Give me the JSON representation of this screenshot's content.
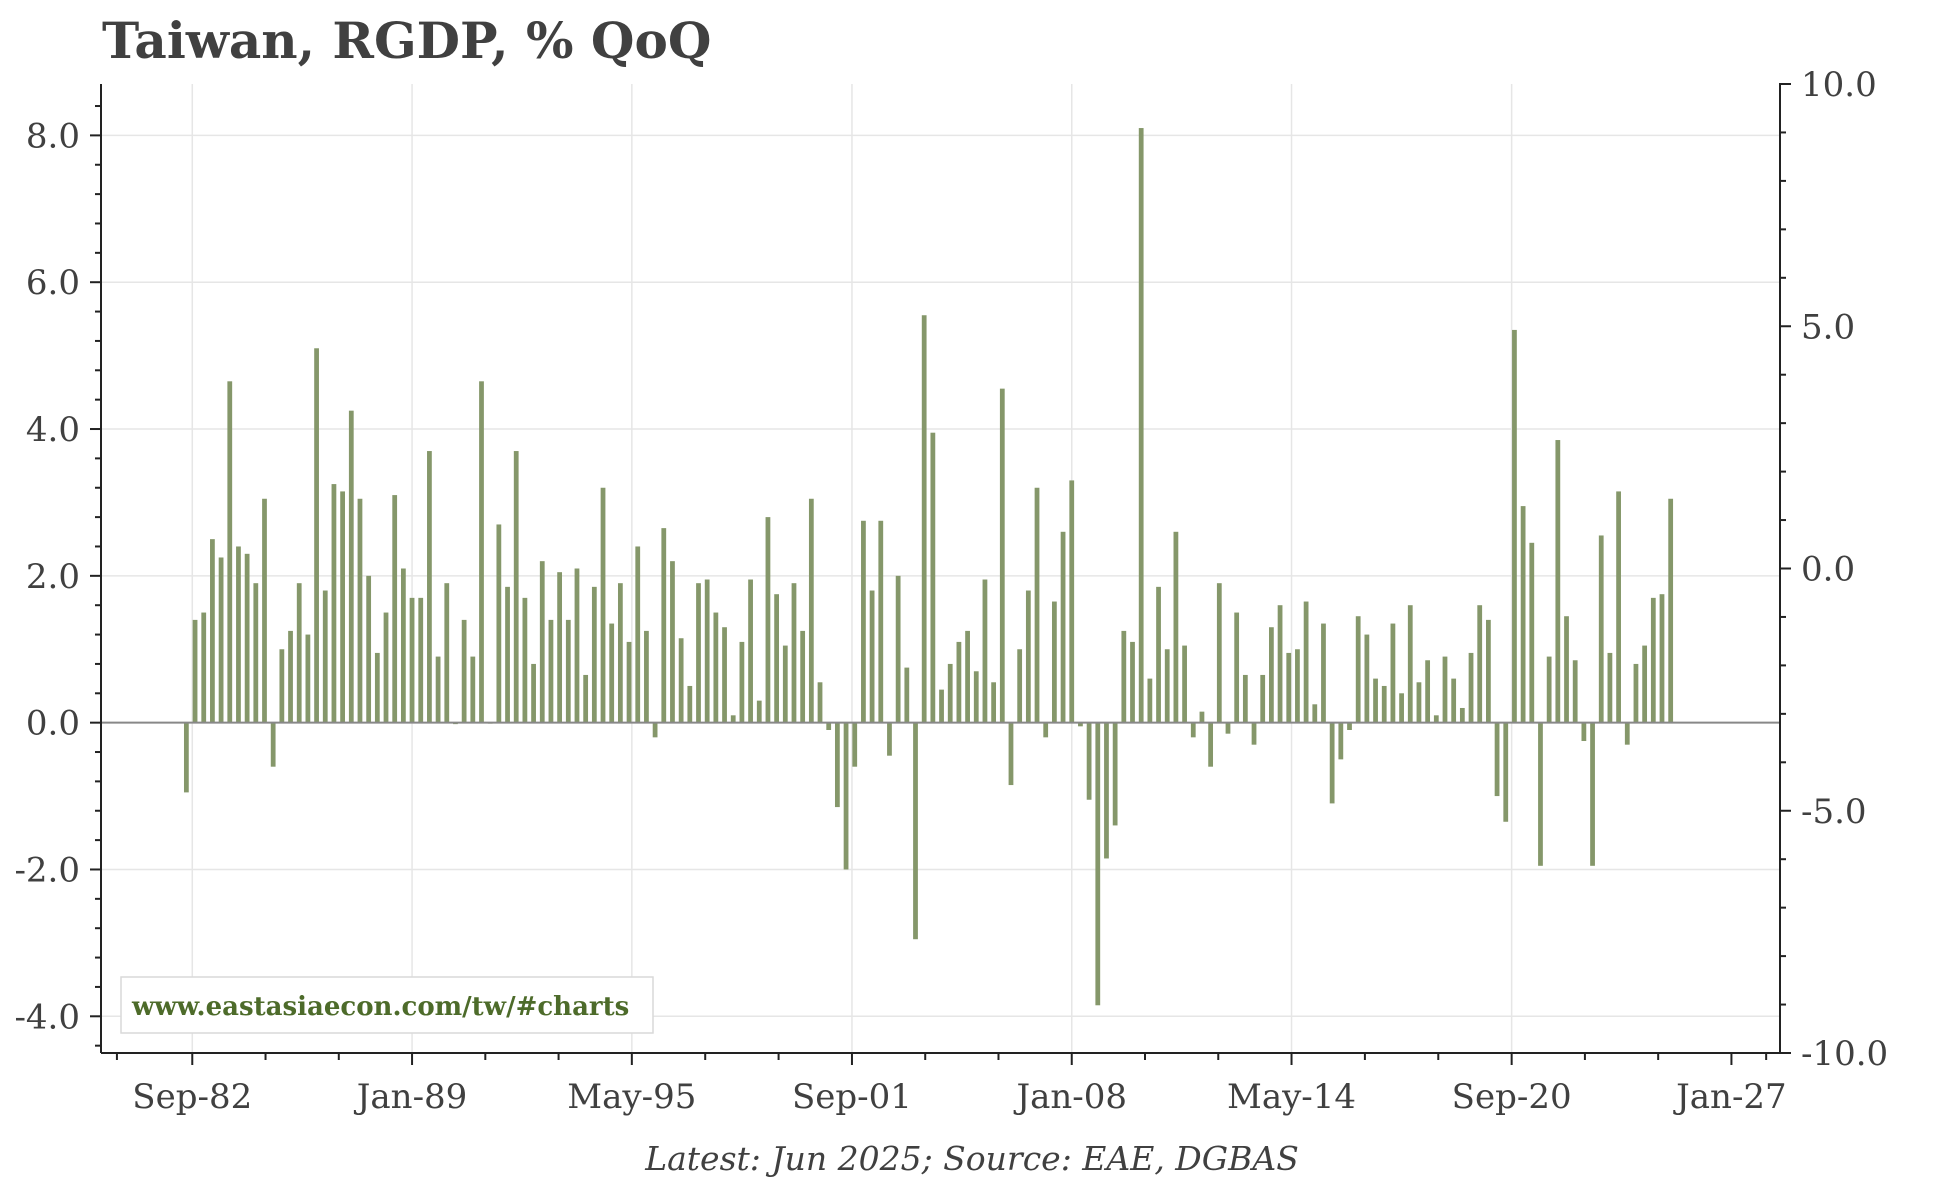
{
  "chart_data": {
    "type": "bar",
    "title": "Taiwan, RGDP, % QoQ",
    "footnote": "Latest: Jun 2025; Source: EAE, DGBAS",
    "watermark": "www.eastasiaecon.com/tw/#charts",
    "start_quarter": "Q3-1982",
    "end_quarter": "Q2-2025",
    "xlabel": "",
    "ylabel": "",
    "ylim": [
      -4.5,
      8.7
    ],
    "ylim_right": [
      -10.0,
      10.0
    ],
    "yticks_left": [
      "-4.0",
      "-2.0",
      "0.0",
      "2.0",
      "4.0",
      "6.0",
      "8.0"
    ],
    "yticks_right": [
      "-10.0",
      "-5.0",
      "0.0",
      "5.0",
      "10.0"
    ],
    "xtick_labels": [
      "Sep-82",
      "Jan-89",
      "May-95",
      "Sep-01",
      "Jan-08",
      "May-14",
      "Sep-20",
      "Jan-27"
    ],
    "grid": true,
    "bar_color": "#85976a",
    "values": [
      -0.95,
      1.4,
      1.5,
      2.5,
      2.25,
      4.65,
      2.4,
      2.3,
      1.9,
      3.05,
      -0.6,
      1.0,
      1.25,
      1.9,
      1.2,
      5.1,
      1.8,
      3.25,
      3.15,
      4.25,
      3.05,
      2.0,
      0.95,
      1.5,
      3.1,
      2.1,
      1.7,
      1.7,
      3.7,
      0.9,
      1.9,
      -0.02,
      1.4,
      0.9,
      4.65,
      0.0,
      2.7,
      1.85,
      3.7,
      1.7,
      0.8,
      2.2,
      1.4,
      2.05,
      1.4,
      2.1,
      0.65,
      1.85,
      3.2,
      1.35,
      1.9,
      1.1,
      2.4,
      1.25,
      -0.2,
      2.65,
      2.2,
      1.15,
      0.5,
      1.9,
      1.95,
      1.5,
      1.3,
      0.1,
      1.1,
      1.95,
      0.3,
      2.8,
      1.75,
      1.05,
      1.9,
      1.25,
      3.05,
      0.55,
      -0.1,
      -1.15,
      -2.0,
      -0.6,
      2.75,
      1.8,
      2.75,
      -0.45,
      2.0,
      0.75,
      -2.95,
      5.55,
      3.95,
      0.45,
      0.8,
      1.1,
      1.25,
      0.7,
      1.95,
      0.55,
      4.55,
      -0.85,
      1.0,
      1.8,
      3.2,
      -0.2,
      1.65,
      2.6,
      3.3,
      -0.05,
      -1.05,
      -3.85,
      -1.85,
      -1.4,
      1.25,
      1.1,
      8.1,
      0.6,
      1.85,
      1.0,
      2.6,
      1.05,
      -0.2,
      0.15,
      -0.6,
      1.9,
      -0.15,
      1.5,
      0.65,
      -0.3,
      0.65,
      1.3,
      1.6,
      0.95,
      1.0,
      1.65,
      0.25,
      1.35,
      -1.1,
      -0.5,
      -0.1,
      1.45,
      1.2,
      0.6,
      0.5,
      1.35,
      0.4,
      1.6,
      0.55,
      0.85,
      0.1,
      0.9,
      0.6,
      0.2,
      0.95,
      1.6,
      1.4,
      -1.0,
      -1.35,
      5.35,
      2.95,
      2.45,
      -1.95,
      0.9,
      3.85,
      1.45,
      0.85,
      -0.25,
      -1.95,
      2.55,
      0.95,
      3.15,
      -0.3,
      0.8,
      1.05,
      1.7,
      1.75,
      3.05
    ]
  }
}
